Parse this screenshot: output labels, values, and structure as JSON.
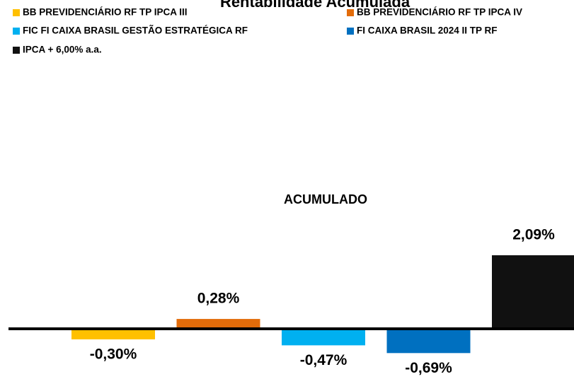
{
  "chart_data": {
    "type": "bar",
    "title": "Rentabilidade Acumulada",
    "categories": [
      "ACUMULADO"
    ],
    "series": [
      {
        "name": "BB PREVIDENCIÁRIO RF TP IPCA III",
        "color": "#ffc000",
        "values": [
          -0.3
        ],
        "value_labels": [
          "-0,30%"
        ]
      },
      {
        "name": "BB PREVIDENCIÁRIO RF TP IPCA IV",
        "color": "#e36c0a",
        "values": [
          0.28
        ],
        "value_labels": [
          "0,28%"
        ]
      },
      {
        "name": "FIC FI CAIXA BRASIL GESTÃO ESTRATÉGICA RF",
        "color": "#00b0f0",
        "values": [
          -0.47
        ],
        "value_labels": [
          "-0,47%"
        ]
      },
      {
        "name": "FI CAIXA BRASIL 2024 II TP RF",
        "color": "#0070c0",
        "values": [
          -0.69
        ],
        "value_labels": [
          "-0,69%"
        ]
      },
      {
        "name": "IPCA + 6,00% a.a.",
        "color": "#111111",
        "values": [
          2.09
        ],
        "value_labels": [
          "2,09%"
        ]
      }
    ]
  }
}
